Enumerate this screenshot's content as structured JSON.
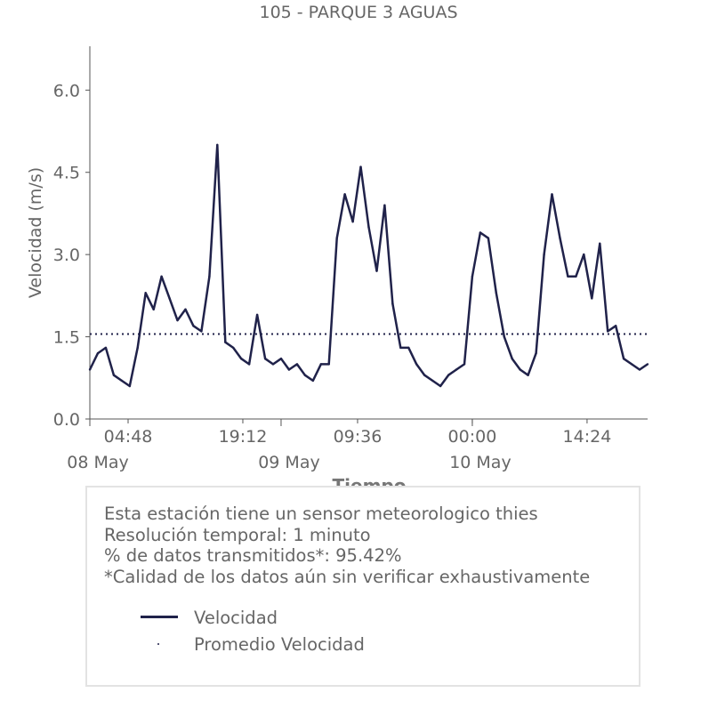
{
  "chart_data": {
    "type": "line",
    "title": "105 - PARQUE 3 AGUAS",
    "xlabel": "Tiempo",
    "ylabel": "Velocidad (m/s)",
    "ylim": [
      0,
      6.8
    ],
    "xlim": [
      "2025-05-08T00:00",
      "2025-05-10T22:00"
    ],
    "yticks": [
      "0.0",
      "1.5",
      "3.0",
      "4.5",
      "6.0"
    ],
    "xticks": [
      "04:48",
      "19:12",
      "09:36",
      "00:00",
      "14:24"
    ],
    "date_labels": [
      "08 May",
      "09 May",
      "10 May"
    ],
    "grid": false,
    "series": [
      {
        "name": "Velocidad",
        "color": "#20224a",
        "style": "solid",
        "x": [
          "2025-05-08T00:00",
          "2025-05-08T01:00",
          "2025-05-08T02:00",
          "2025-05-08T03:00",
          "2025-05-08T04:00",
          "2025-05-08T05:00",
          "2025-05-08T06:00",
          "2025-05-08T07:00",
          "2025-05-08T08:00",
          "2025-05-08T09:00",
          "2025-05-08T10:00",
          "2025-05-08T11:00",
          "2025-05-08T12:00",
          "2025-05-08T13:00",
          "2025-05-08T14:00",
          "2025-05-08T15:00",
          "2025-05-08T16:00",
          "2025-05-08T17:00",
          "2025-05-08T18:00",
          "2025-05-08T19:00",
          "2025-05-08T20:00",
          "2025-05-08T21:00",
          "2025-05-08T22:00",
          "2025-05-08T23:00",
          "2025-05-09T00:00",
          "2025-05-09T01:00",
          "2025-05-09T02:00",
          "2025-05-09T03:00",
          "2025-05-09T04:00",
          "2025-05-09T05:00",
          "2025-05-09T06:00",
          "2025-05-09T07:00",
          "2025-05-09T08:00",
          "2025-05-09T09:00",
          "2025-05-09T10:00",
          "2025-05-09T11:00",
          "2025-05-09T12:00",
          "2025-05-09T13:00",
          "2025-05-09T14:00",
          "2025-05-09T15:00",
          "2025-05-09T16:00",
          "2025-05-09T17:00",
          "2025-05-09T18:00",
          "2025-05-09T19:00",
          "2025-05-09T20:00",
          "2025-05-09T21:00",
          "2025-05-09T22:00",
          "2025-05-09T23:00",
          "2025-05-10T00:00",
          "2025-05-10T01:00",
          "2025-05-10T02:00",
          "2025-05-10T03:00",
          "2025-05-10T04:00",
          "2025-05-10T05:00",
          "2025-05-10T06:00",
          "2025-05-10T07:00",
          "2025-05-10T08:00",
          "2025-05-10T09:00",
          "2025-05-10T10:00",
          "2025-05-10T11:00",
          "2025-05-10T12:00",
          "2025-05-10T13:00",
          "2025-05-10T14:00",
          "2025-05-10T15:00",
          "2025-05-10T16:00",
          "2025-05-10T17:00",
          "2025-05-10T18:00",
          "2025-05-10T19:00",
          "2025-05-10T20:00",
          "2025-05-10T21:00",
          "2025-05-10T22:00"
        ],
        "y": [
          0.9,
          1.2,
          1.3,
          0.8,
          0.7,
          0.6,
          1.3,
          2.3,
          2.0,
          2.6,
          2.2,
          1.8,
          2.0,
          1.7,
          1.6,
          2.6,
          5.0,
          1.4,
          1.3,
          1.1,
          1.0,
          1.9,
          1.1,
          1.0,
          1.1,
          0.9,
          1.0,
          0.8,
          0.7,
          1.0,
          1.0,
          3.3,
          4.1,
          3.6,
          4.6,
          3.5,
          2.7,
          3.9,
          2.1,
          1.3,
          1.3,
          1.0,
          0.8,
          0.7,
          0.6,
          0.8,
          0.9,
          1.0,
          2.6,
          3.4,
          3.3,
          2.3,
          1.5,
          1.1,
          0.9,
          0.8,
          1.2,
          3.0,
          4.1,
          3.3,
          2.6,
          2.6,
          3.0,
          2.2,
          3.2,
          1.6,
          1.7,
          1.1,
          1.0,
          0.9,
          1.0
        ]
      },
      {
        "name": "Promedio Velocidad",
        "color": "#20224a",
        "style": "dotted",
        "x": [
          "2025-05-08T00:00",
          "2025-05-10T22:00"
        ],
        "y": [
          1.55,
          1.55
        ]
      }
    ]
  },
  "info": {
    "line1": "Esta estación tiene un sensor meteorologico thies",
    "line2": "Resolución temporal: 1 minuto",
    "line3": "% de datos transmitidos*: 95.42%",
    "line4": "*Calidad de los datos aún sin verificar exhaustivamente"
  },
  "legend": {
    "item1": "Velocidad",
    "item2": "Promedio Velocidad"
  }
}
